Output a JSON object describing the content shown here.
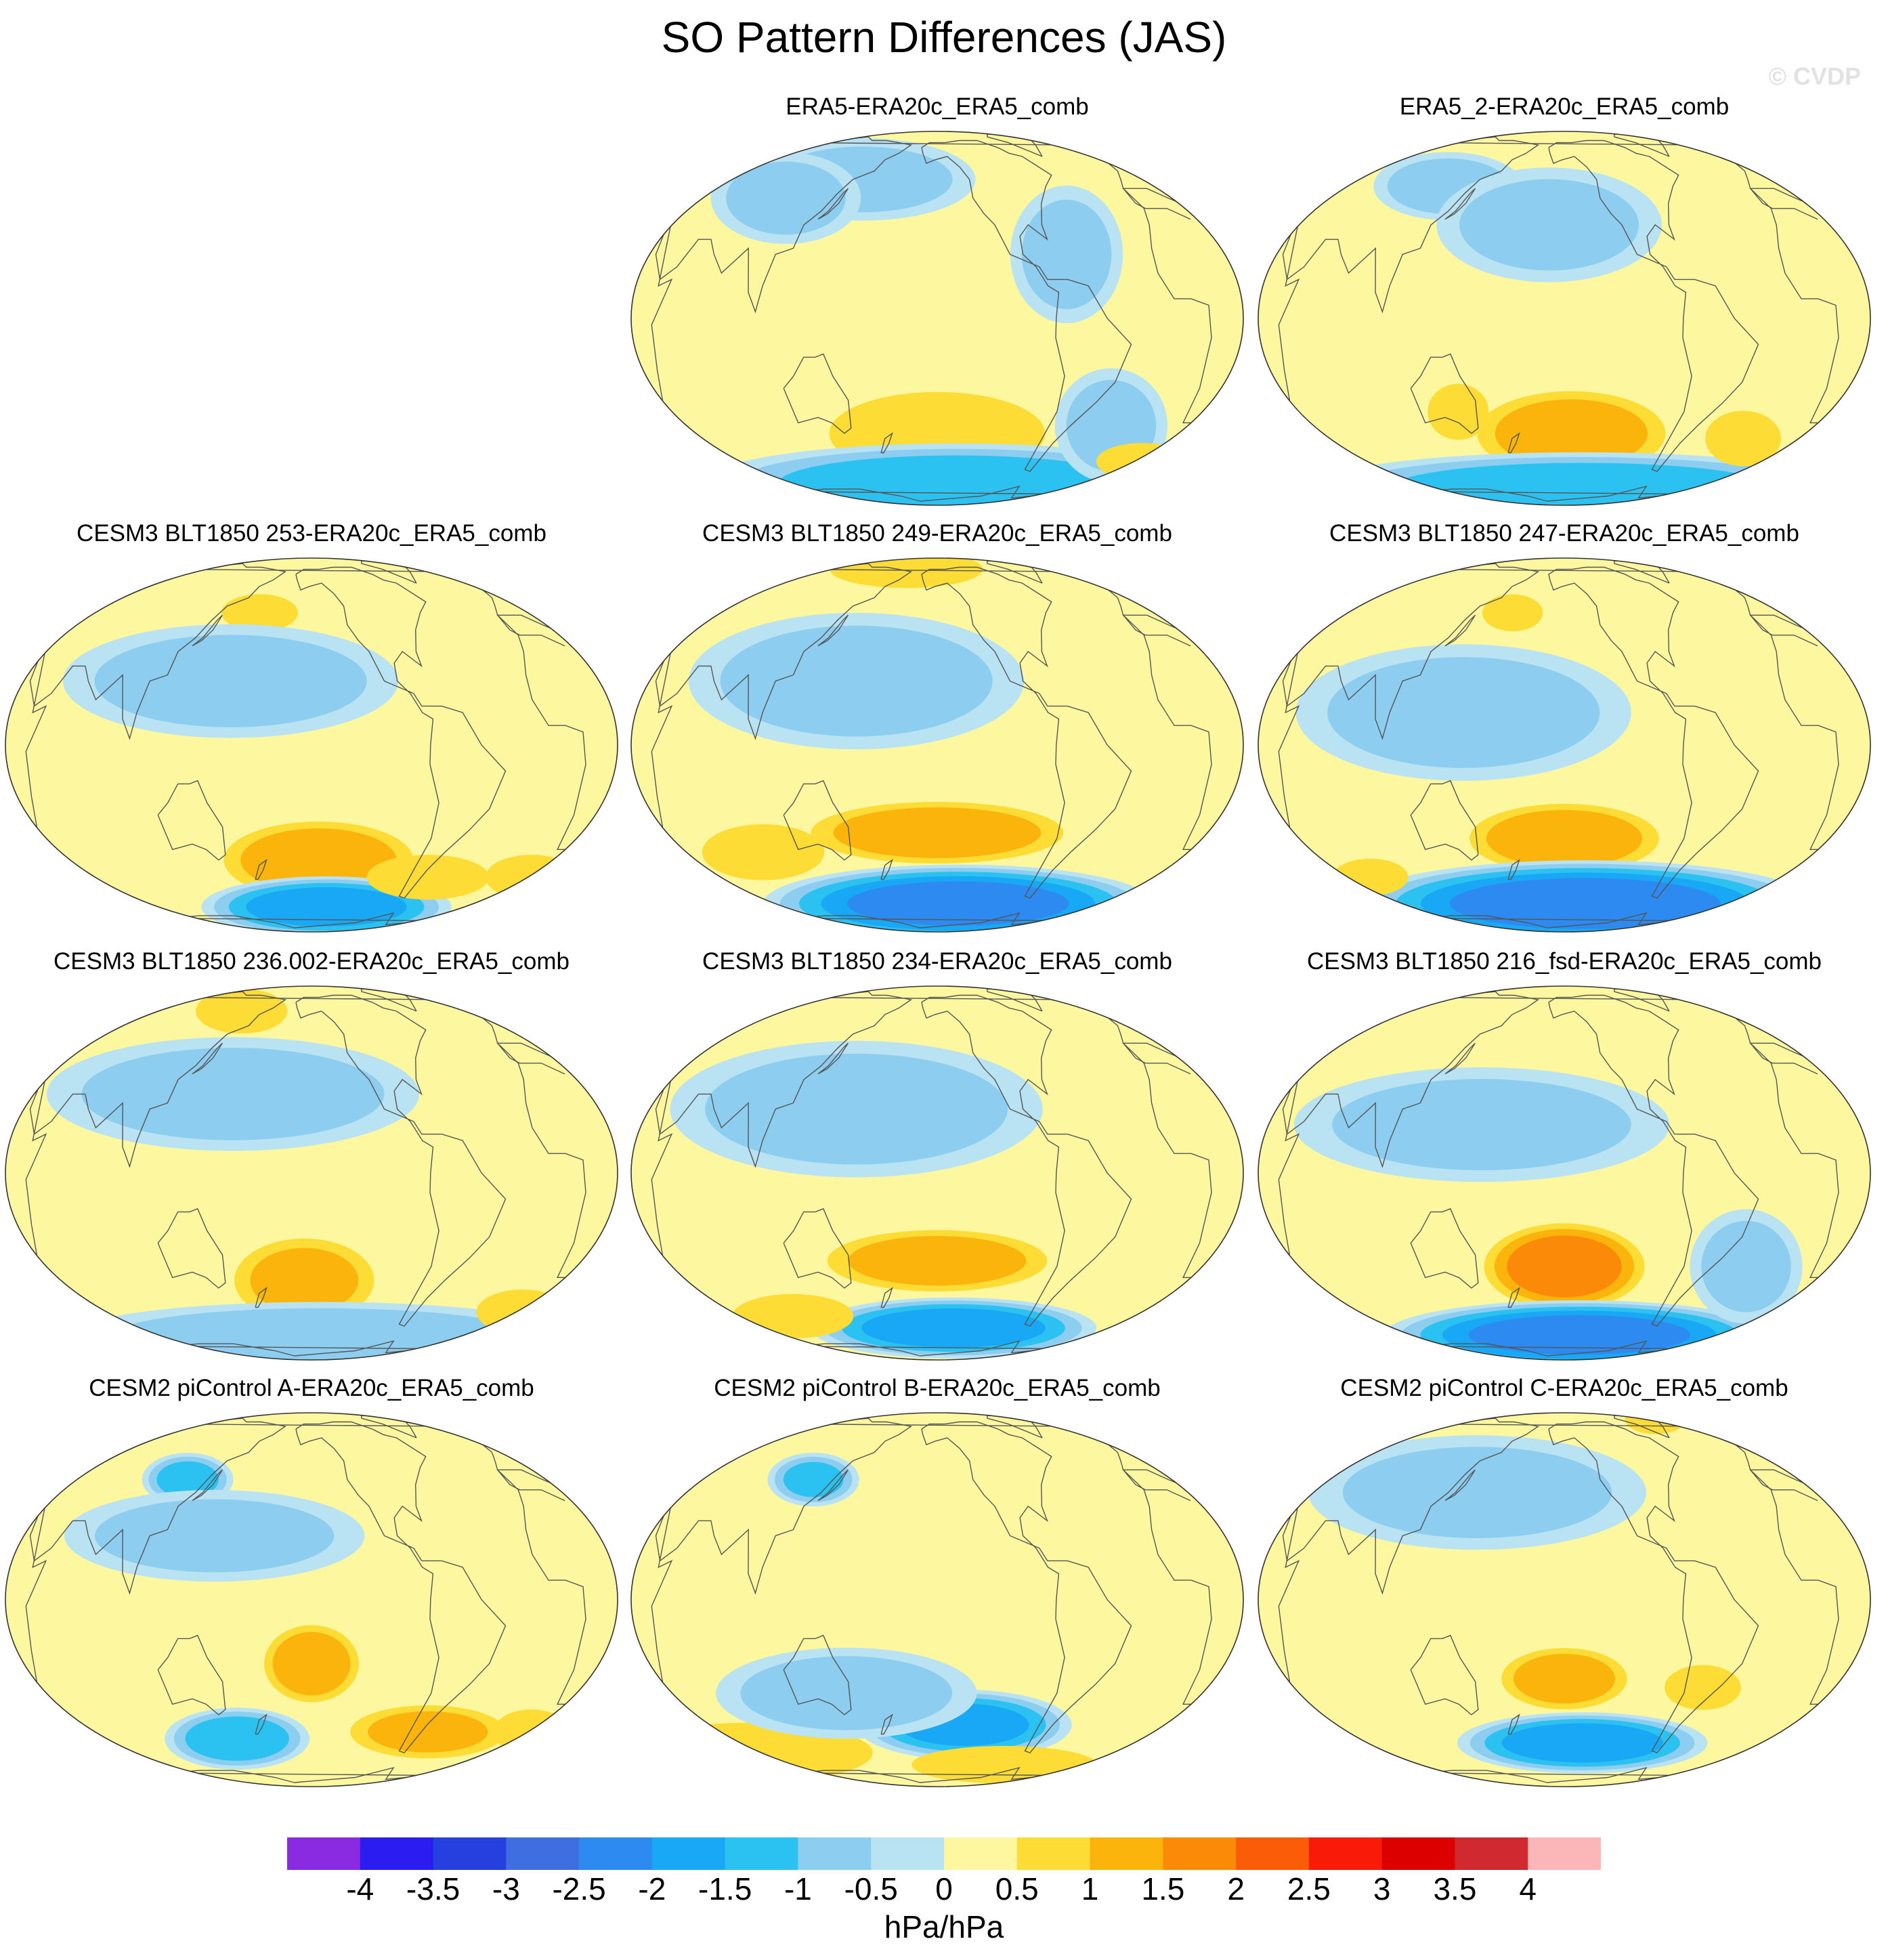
{
  "title": "SO Pattern Differences (JAS)",
  "watermark": "© CVDP",
  "colorbar": {
    "colors": [
      "#8a2be2",
      "#2b1df2",
      "#2540df",
      "#3f6ee0",
      "#2d8af0",
      "#19a8f5",
      "#2bc2f2",
      "#8ccdf0",
      "#b9e2f2",
      "#fdf8a0",
      "#fddc36",
      "#fbb40c",
      "#fb8a08",
      "#fb5c08",
      "#fa1a08",
      "#dc0000",
      "#d02a30",
      "#fbb7b7"
    ],
    "tick_labels": [
      "-4",
      "-3.5",
      "-3",
      "-2.5",
      "-2",
      "-1.5",
      "-1",
      "-0.5",
      "0",
      "0.5",
      "1",
      "1.5",
      "2",
      "2.5",
      "3",
      "3.5",
      "4"
    ],
    "units": "hPa/hPa"
  },
  "panels": [
    {
      "title": "ERA5-ERA20c_ERA5_comb",
      "blobs": [
        {
          "lon": 210,
          "lat": -38,
          "rx": 70,
          "ry": 22,
          "v": 0.9
        },
        {
          "lon": 230,
          "lat": -62,
          "rx": 140,
          "ry": 18,
          "v": -1.2
        },
        {
          "lon": 150,
          "lat": 48,
          "rx": 60,
          "ry": 18,
          "v": -0.6
        },
        {
          "lon": 100,
          "lat": 40,
          "rx": 40,
          "ry": 20,
          "v": -0.6
        },
        {
          "lon": 290,
          "lat": 20,
          "rx": 30,
          "ry": 30,
          "v": -0.6
        },
        {
          "lon": 330,
          "lat": -35,
          "rx": 30,
          "ry": 25,
          "v": -0.6
        },
        {
          "lon": 20,
          "lat": -50,
          "rx": 30,
          "ry": 10,
          "v": 0.7
        }
      ]
    },
    {
      "title": "ERA5_2-ERA20c_ERA5_comb",
      "blobs": [
        {
          "lon": 215,
          "lat": -38,
          "rx": 60,
          "ry": 22,
          "v": 1.2
        },
        {
          "lon": 230,
          "lat": -65,
          "rx": 150,
          "ry": 16,
          "v": -1.2
        },
        {
          "lon": 140,
          "lat": -30,
          "rx": 20,
          "ry": 15,
          "v": 0.8
        },
        {
          "lon": 120,
          "lat": 45,
          "rx": 40,
          "ry": 15,
          "v": -0.7
        },
        {
          "lon": 200,
          "lat": 30,
          "rx": 60,
          "ry": 25,
          "v": -0.6
        },
        {
          "lon": 340,
          "lat": -40,
          "rx": 25,
          "ry": 15,
          "v": 0.7
        }
      ]
    },
    {
      "title": "CESM3 BLT1850 253-ERA20c_ERA5_comb",
      "blobs": [
        {
          "lon": 215,
          "lat": -38,
          "rx": 60,
          "ry": 20,
          "v": 1.3
        },
        {
          "lon": 225,
          "lat": -60,
          "rx": 70,
          "ry": 14,
          "v": -1.8
        },
        {
          "lon": 170,
          "lat": 45,
          "rx": 25,
          "ry": 10,
          "v": 0.8
        },
        {
          "lon": 160,
          "lat": 20,
          "rx": 90,
          "ry": 25,
          "v": -0.7
        },
        {
          "lon": 20,
          "lat": -45,
          "rx": 30,
          "ry": 12,
          "v": 0.8
        },
        {
          "lon": 300,
          "lat": -45,
          "rx": 40,
          "ry": 12,
          "v": 0.8
        }
      ]
    },
    {
      "title": "CESM3 BLT1850 249-ERA20c_ERA5_comb",
      "blobs": [
        {
          "lon": 210,
          "lat": -28,
          "rx": 80,
          "ry": 16,
          "v": 1.3
        },
        {
          "lon": 230,
          "lat": -58,
          "rx": 110,
          "ry": 18,
          "v": -2.2
        },
        {
          "lon": 170,
          "lat": 70,
          "rx": 50,
          "ry": 10,
          "v": 0.8
        },
        {
          "lon": 160,
          "lat": 20,
          "rx": 90,
          "ry": 30,
          "v": -0.7
        },
        {
          "lon": 90,
          "lat": -35,
          "rx": 40,
          "ry": 15,
          "v": 0.8
        }
      ]
    },
    {
      "title": "CESM3 BLT1850 247-ERA20c_ERA5_comb",
      "blobs": [
        {
          "lon": 210,
          "lat": -30,
          "rx": 60,
          "ry": 18,
          "v": 1.3
        },
        {
          "lon": 230,
          "lat": -58,
          "rx": 130,
          "ry": 20,
          "v": -2.3
        },
        {
          "lon": 170,
          "lat": 45,
          "rx": 20,
          "ry": 10,
          "v": 0.7
        },
        {
          "lon": 150,
          "lat": 10,
          "rx": 90,
          "ry": 30,
          "v": -0.7
        },
        {
          "lon": 60,
          "lat": -45,
          "rx": 25,
          "ry": 10,
          "v": 0.7
        }
      ]
    },
    {
      "title": "CESM3 BLT1850 236.002-ERA20c_ERA5_comb",
      "blobs": [
        {
          "lon": 205,
          "lat": -35,
          "rx": 45,
          "ry": 22,
          "v": 1.0
        },
        {
          "lon": 220,
          "lat": -62,
          "rx": 140,
          "ry": 16,
          "v": -0.8
        },
        {
          "lon": 140,
          "lat": 60,
          "rx": 30,
          "ry": 12,
          "v": 0.8
        },
        {
          "lon": 160,
          "lat": 25,
          "rx": 100,
          "ry": 25,
          "v": -0.7
        },
        {
          "lon": 20,
          "lat": -48,
          "rx": 30,
          "ry": 12,
          "v": 0.8
        }
      ]
    },
    {
      "title": "CESM3 BLT1850 234-ERA20c_ERA5_comb",
      "blobs": [
        {
          "lon": 210,
          "lat": -28,
          "rx": 70,
          "ry": 16,
          "v": 1.2
        },
        {
          "lon": 225,
          "lat": -56,
          "rx": 80,
          "ry": 14,
          "v": -1.8
        },
        {
          "lon": 160,
          "lat": 20,
          "rx": 100,
          "ry": 30,
          "v": -0.7
        },
        {
          "lon": 90,
          "lat": -50,
          "rx": 40,
          "ry": 12,
          "v": 0.7
        }
      ]
    },
    {
      "title": "CESM3 BLT1850 216_fsd-ERA20c_ERA5_comb",
      "blobs": [
        {
          "lon": 210,
          "lat": -30,
          "rx": 50,
          "ry": 22,
          "v": 1.8
        },
        {
          "lon": 225,
          "lat": -60,
          "rx": 110,
          "ry": 16,
          "v": -2.2
        },
        {
          "lon": 160,
          "lat": 15,
          "rx": 100,
          "ry": 25,
          "v": -0.6
        },
        {
          "lon": 330,
          "lat": -30,
          "rx": 30,
          "ry": 25,
          "v": -0.6
        }
      ]
    },
    {
      "title": "CESM2 piControl A-ERA20c_ERA5_comb",
      "blobs": [
        {
          "lon": 210,
          "lat": -20,
          "rx": 30,
          "ry": 20,
          "v": 1.3
        },
        {
          "lon": 150,
          "lat": -48,
          "rx": 40,
          "ry": 14,
          "v": -1.3
        },
        {
          "lon": 120,
          "lat": 40,
          "rx": 25,
          "ry": 12,
          "v": -1.1
        },
        {
          "lon": 300,
          "lat": -45,
          "rx": 50,
          "ry": 14,
          "v": 1.0
        },
        {
          "lon": 20,
          "lat": -45,
          "rx": 25,
          "ry": 12,
          "v": 0.8
        },
        {
          "lon": 150,
          "lat": 20,
          "rx": 80,
          "ry": 20,
          "v": -0.6
        }
      ]
    },
    {
      "title": "CESM2 piControl B-ERA20c_ERA5_comb",
      "blobs": [
        {
          "lon": 230,
          "lat": -42,
          "rx": 60,
          "ry": 16,
          "v": -1.6
        },
        {
          "lon": 40,
          "lat": -55,
          "rx": 80,
          "ry": 16,
          "v": 0.9
        },
        {
          "lon": 280,
          "lat": -62,
          "rx": 60,
          "ry": 10,
          "v": 0.9
        },
        {
          "lon": 120,
          "lat": 40,
          "rx": 25,
          "ry": 12,
          "v": -1.0
        },
        {
          "lon": 150,
          "lat": -30,
          "rx": 70,
          "ry": 20,
          "v": -0.7
        }
      ]
    },
    {
      "title": "CESM2 piControl C-ERA20c_ERA5_comb",
      "blobs": [
        {
          "lon": 210,
          "lat": -25,
          "rx": 40,
          "ry": 16,
          "v": 1.2
        },
        {
          "lon": 225,
          "lat": -50,
          "rx": 70,
          "ry": 14,
          "v": -1.8
        },
        {
          "lon": 300,
          "lat": -28,
          "rx": 25,
          "ry": 12,
          "v": 0.8
        },
        {
          "lon": 150,
          "lat": 35,
          "rx": 90,
          "ry": 25,
          "v": -0.6
        },
        {
          "lon": 350,
          "lat": 75,
          "rx": 20,
          "ry": 8,
          "v": 0.8
        }
      ]
    }
  ]
}
